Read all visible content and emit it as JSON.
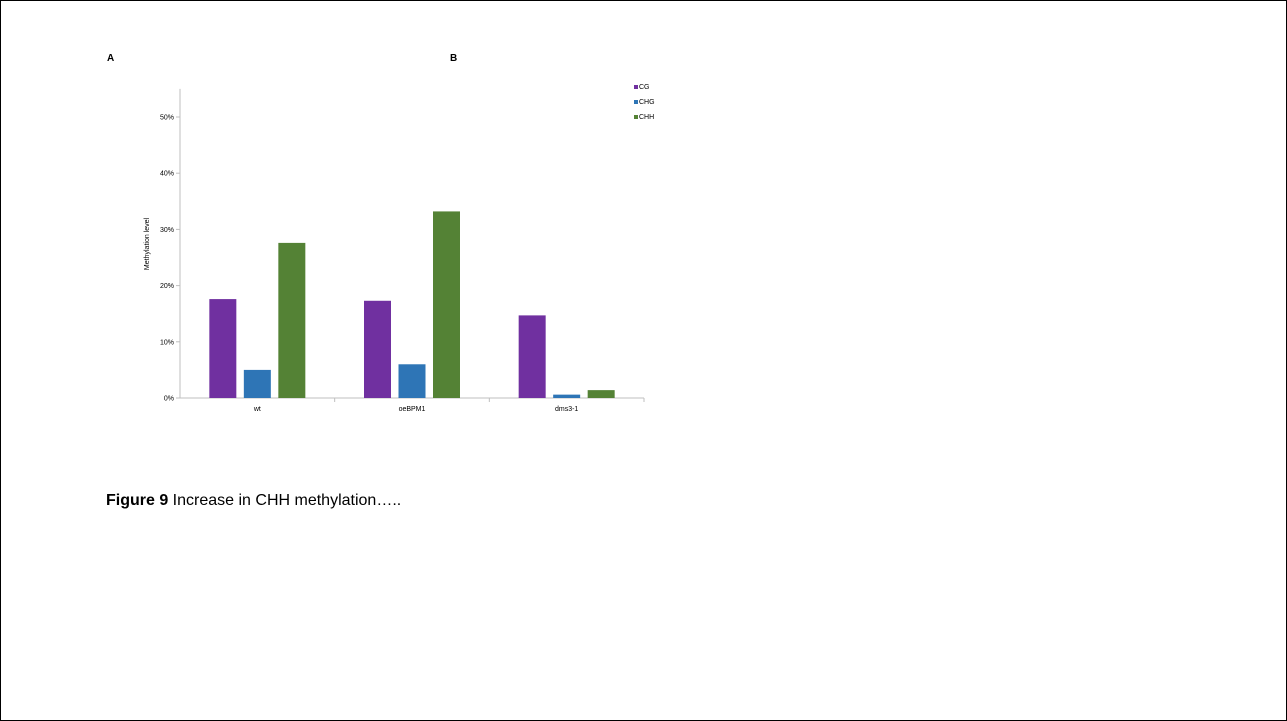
{
  "panels": {
    "a": "A",
    "b": "B"
  },
  "caption": {
    "bold": "Figure 9",
    "text": " Increase in CHH methylation….."
  },
  "chart_data": {
    "type": "bar",
    "categories": [
      "wt",
      "oeBPM1",
      "dms3-1"
    ],
    "series": [
      {
        "name": "CG",
        "color": "#7030A0",
        "values": [
          17.6,
          17.3,
          14.7
        ]
      },
      {
        "name": "CHG",
        "color": "#2E75B6",
        "values": [
          5.0,
          6.0,
          0.6
        ]
      },
      {
        "name": "CHH",
        "color": "#548235",
        "values": [
          27.6,
          33.2,
          1.4
        ]
      }
    ],
    "ylabel": "Methylation level",
    "yticks": [
      "0%",
      "10%",
      "20%",
      "30%",
      "40%",
      "50%"
    ],
    "ylim": [
      0,
      55
    ],
    "grid": false,
    "legend": "top-right"
  }
}
